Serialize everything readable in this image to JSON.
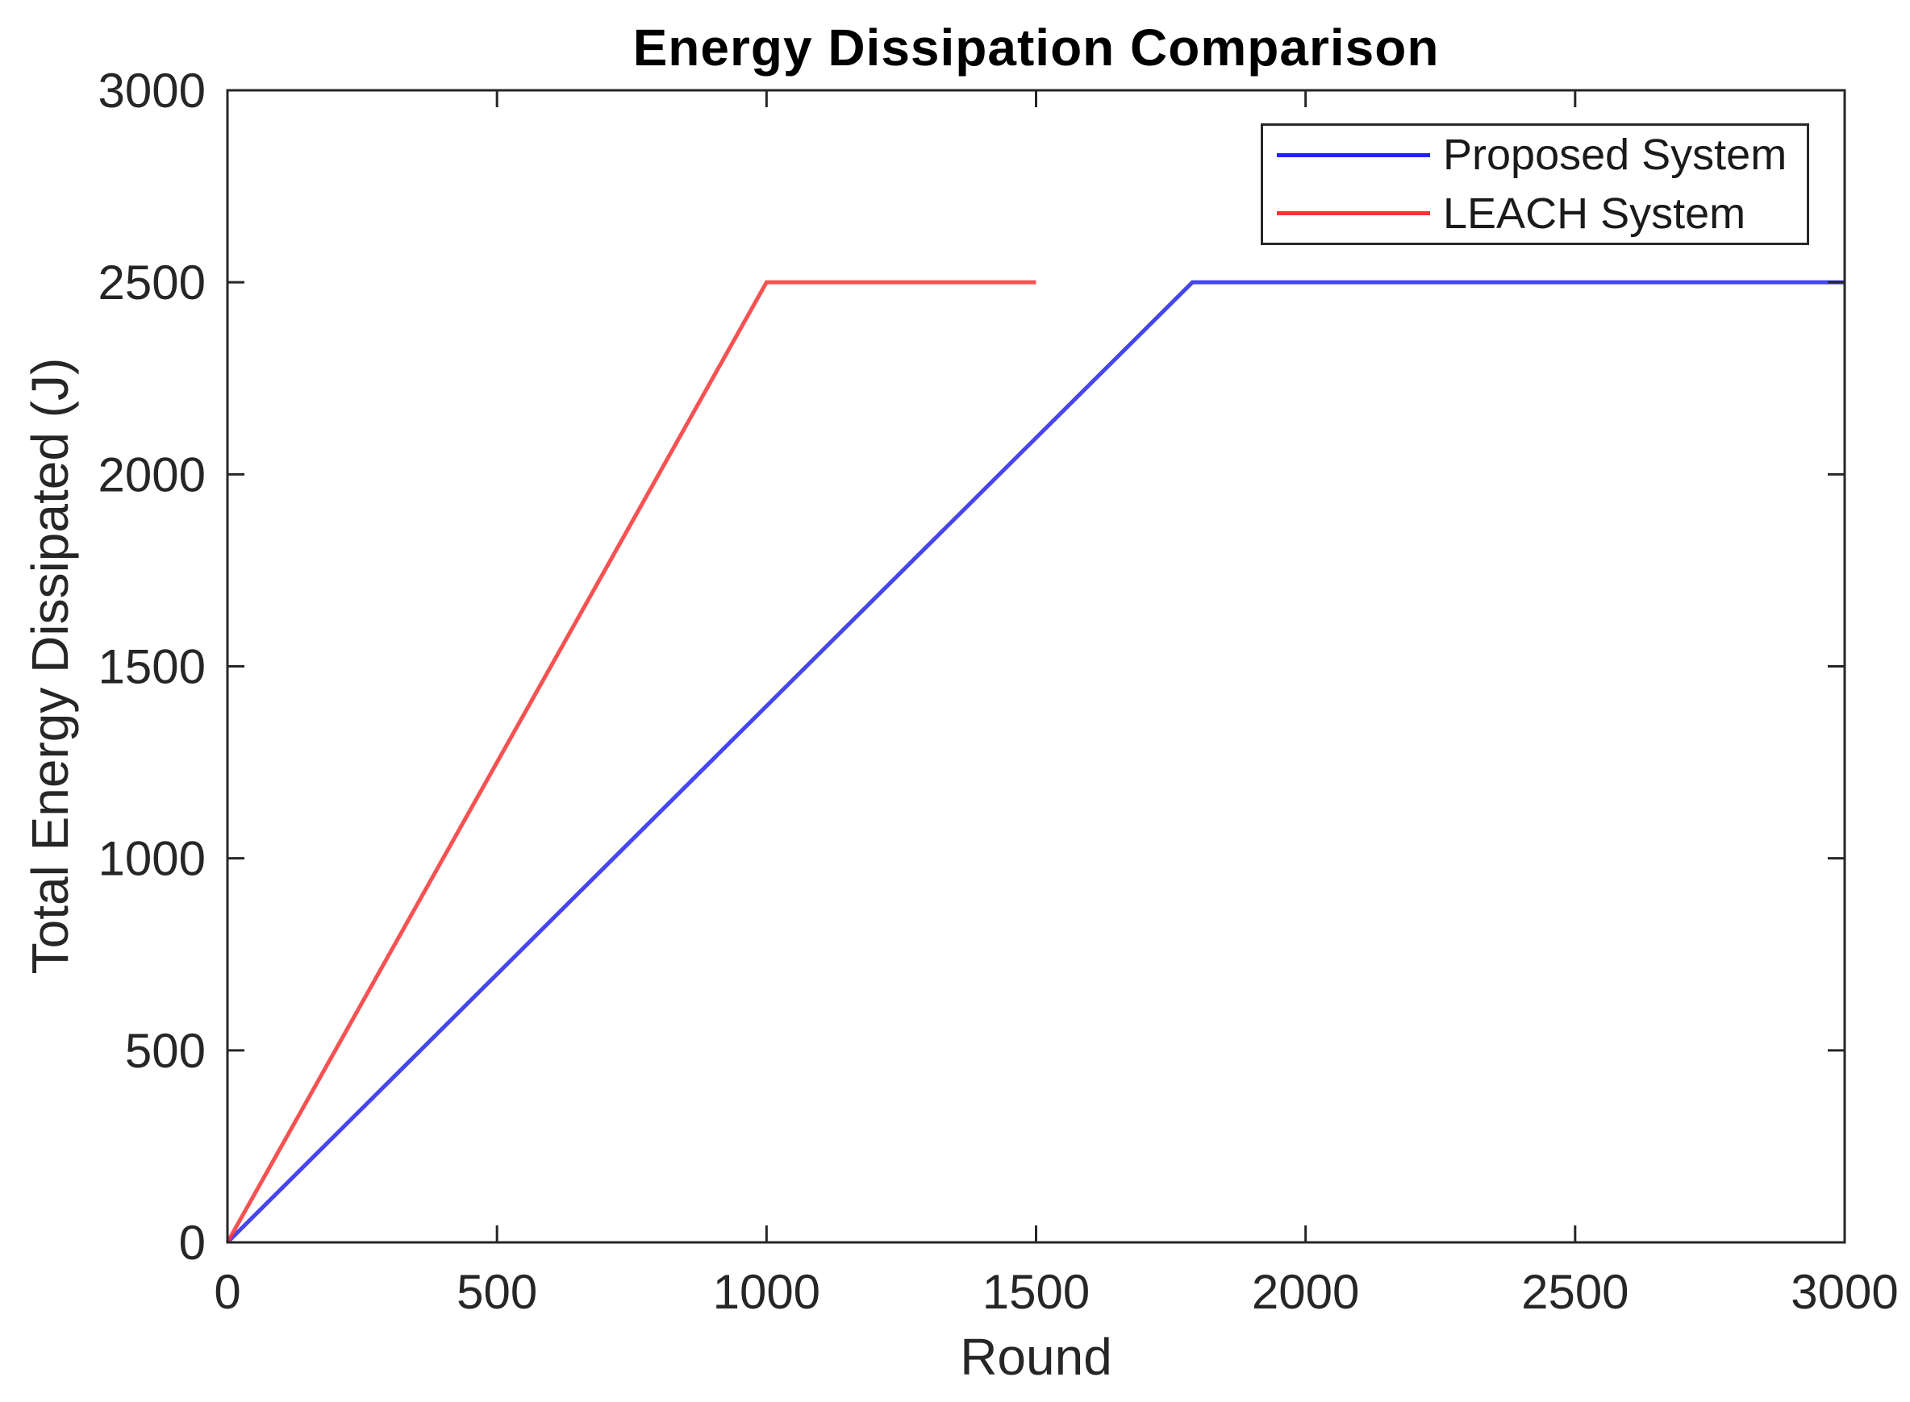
{
  "chart_data": {
    "type": "line",
    "title": "Energy Dissipation Comparison",
    "xlabel": "Round",
    "ylabel": "Total Energy Dissipated (J)",
    "xlim": [
      0,
      3000
    ],
    "ylim": [
      0,
      3000
    ],
    "x_ticks": [
      "0",
      "500",
      "1000",
      "1500",
      "2000",
      "2500",
      "3000"
    ],
    "y_ticks": [
      "0",
      "500",
      "1000",
      "1500",
      "2000",
      "2500",
      "3000"
    ],
    "x_tick_values": [
      0,
      500,
      1000,
      1500,
      2000,
      2500,
      3000
    ],
    "y_tick_values": [
      0,
      500,
      1000,
      1500,
      2000,
      2500,
      3000
    ],
    "grid": false,
    "legend_position": "top-right",
    "axis_color": "#262626",
    "series": [
      {
        "name": "Proposed System",
        "color": "#2424f0",
        "points": [
          [
            0,
            0
          ],
          [
            1790,
            2500
          ],
          [
            3000,
            2500
          ]
        ]
      },
      {
        "name": "LEACH System",
        "color": "#f53434",
        "points": [
          [
            0,
            0
          ],
          [
            1000,
            2500
          ],
          [
            1500,
            2500
          ]
        ]
      }
    ]
  }
}
